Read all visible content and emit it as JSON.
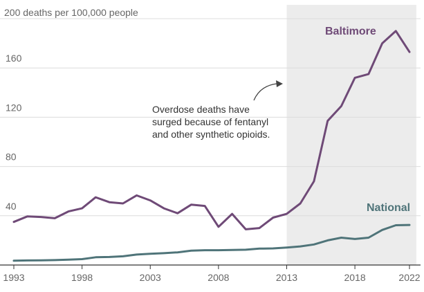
{
  "chart_data": {
    "type": "line",
    "title": "200 deaths per 100,000 people",
    "xlabel": "",
    "ylabel": "deaths per 100,000 people",
    "xlim": [
      1993,
      2022
    ],
    "ylim": [
      0,
      200
    ],
    "yticks": [
      40,
      80,
      120,
      160
    ],
    "xticks": [
      1993,
      1998,
      2003,
      2008,
      2013,
      2018,
      2022
    ],
    "xtick_labels": [
      "1993",
      "1998",
      "2003",
      "2008",
      "2013",
      "2018",
      "2022"
    ],
    "ytick_labels": [
      "40",
      "80",
      "120",
      "160"
    ],
    "shaded_region": [
      2013,
      2022.5
    ],
    "series": [
      {
        "name": "Baltimore",
        "color": "#6f4a77",
        "x": [
          1993,
          1994,
          1995,
          1996,
          1997,
          1998,
          1999,
          2000,
          2001,
          2002,
          2003,
          2004,
          2005,
          2006,
          2007,
          2008,
          2009,
          2010,
          2011,
          2012,
          2013,
          2014,
          2015,
          2016,
          2017,
          2018,
          2019,
          2020,
          2021,
          2022
        ],
        "values": [
          35,
          39.5,
          39,
          38,
          43.5,
          46,
          55,
          51,
          50,
          56.5,
          52.5,
          46,
          42,
          49,
          48,
          31,
          41.5,
          29,
          30,
          38.5,
          41.5,
          50,
          68,
          117,
          129,
          152,
          155,
          180,
          190,
          173
        ]
      },
      {
        "name": "National",
        "color": "#4f7479",
        "x": [
          1993,
          1994,
          1995,
          1996,
          1997,
          1998,
          1999,
          2000,
          2001,
          2002,
          2003,
          2004,
          2005,
          2006,
          2007,
          2008,
          2009,
          2010,
          2011,
          2012,
          2013,
          2014,
          2015,
          2016,
          2017,
          2018,
          2019,
          2020,
          2021,
          2022
        ],
        "values": [
          3.5,
          3.7,
          3.8,
          4,
          4.4,
          4.8,
          6.3,
          6.5,
          7.1,
          8.5,
          9.1,
          9.6,
          10.3,
          11.7,
          12,
          12,
          12.2,
          12.4,
          13.3,
          13.5,
          14.2,
          15.1,
          16.7,
          20,
          22.2,
          21.1,
          22.2,
          28.5,
          32.3,
          32.5
        ]
      }
    ],
    "annotation": {
      "lines": [
        "Overdose deaths have",
        "surged because of fentanyl",
        "and other synthetic opioids."
      ]
    }
  }
}
